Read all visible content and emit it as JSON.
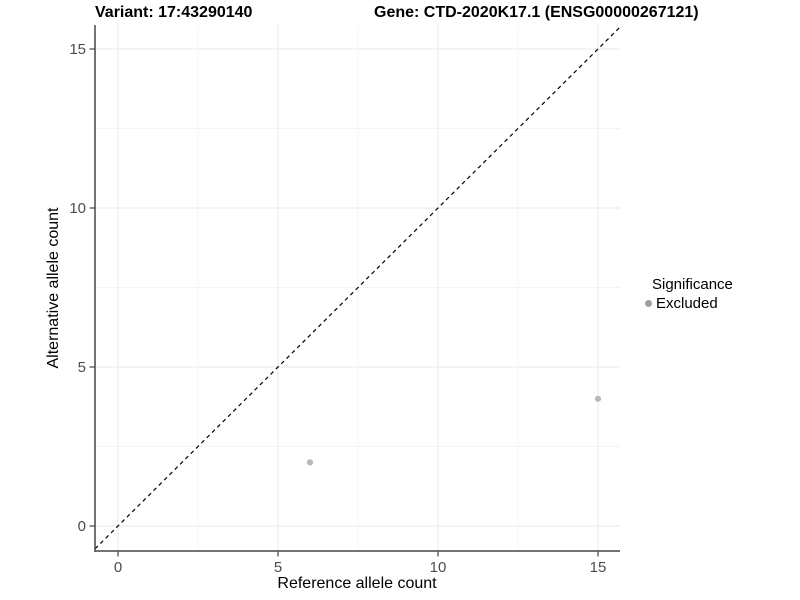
{
  "titles": {
    "left": "Variant: 17:43290140",
    "right": "Gene: CTD-2020K17.1 (ENSG00000267121)"
  },
  "chart_data": {
    "type": "scatter",
    "xlabel": "Reference allele count",
    "ylabel": "Alternative allele count",
    "xlim": [
      -0.75,
      15.7
    ],
    "ylim": [
      -0.8,
      15.75
    ],
    "xticks": [
      0,
      5,
      10,
      15
    ],
    "yticks": [
      0,
      5,
      10,
      15
    ],
    "minor_ticks": [
      2.5,
      7.5,
      12.5
    ],
    "grid": "major and minor gridlines, very faint, white background",
    "identity_line": {
      "slope": 1,
      "intercept": 0,
      "style": "dashed",
      "color": "#000000"
    },
    "series": [
      {
        "name": "Excluded",
        "color": "#b9b9b9",
        "points": [
          [
            6,
            2
          ],
          [
            15,
            4
          ]
        ]
      }
    ],
    "legend": {
      "position": "right",
      "title": "Significance",
      "entries": [
        {
          "label": "Excluded",
          "color": "#a0a0a0"
        }
      ]
    },
    "style": {
      "grid_major": "#e8e8e8",
      "grid_minor": "#f4f4f4",
      "axis_line": "#474747",
      "tick_color": "#474747",
      "tick_label_color": "#4d4d4d",
      "point_color": "#b9b9b9"
    }
  }
}
